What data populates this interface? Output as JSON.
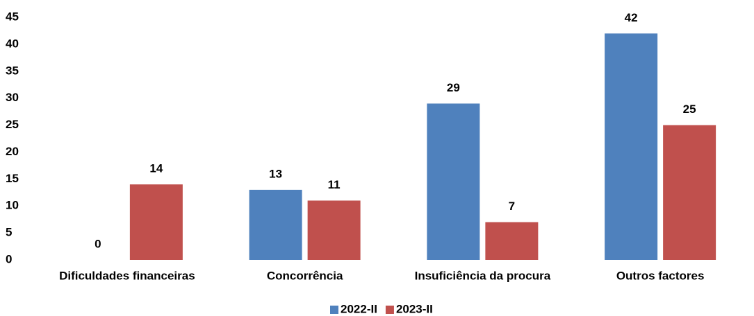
{
  "chart_data": {
    "type": "bar",
    "categories": [
      "Dificuldades financeiras",
      "Concorrência",
      "Insuficiência da procura",
      "Outros factores"
    ],
    "series": [
      {
        "name": "2022-II",
        "color": "#4f81bd",
        "values": [
          0,
          13,
          29,
          42
        ]
      },
      {
        "name": "2023-II",
        "color": "#c0504d",
        "values": [
          14,
          11,
          7,
          25
        ]
      }
    ],
    "ylim": [
      0,
      45
    ],
    "yticks": [
      0,
      5,
      10,
      15,
      20,
      25,
      30,
      35,
      40,
      45
    ],
    "grid": false,
    "legend": "bottom"
  }
}
